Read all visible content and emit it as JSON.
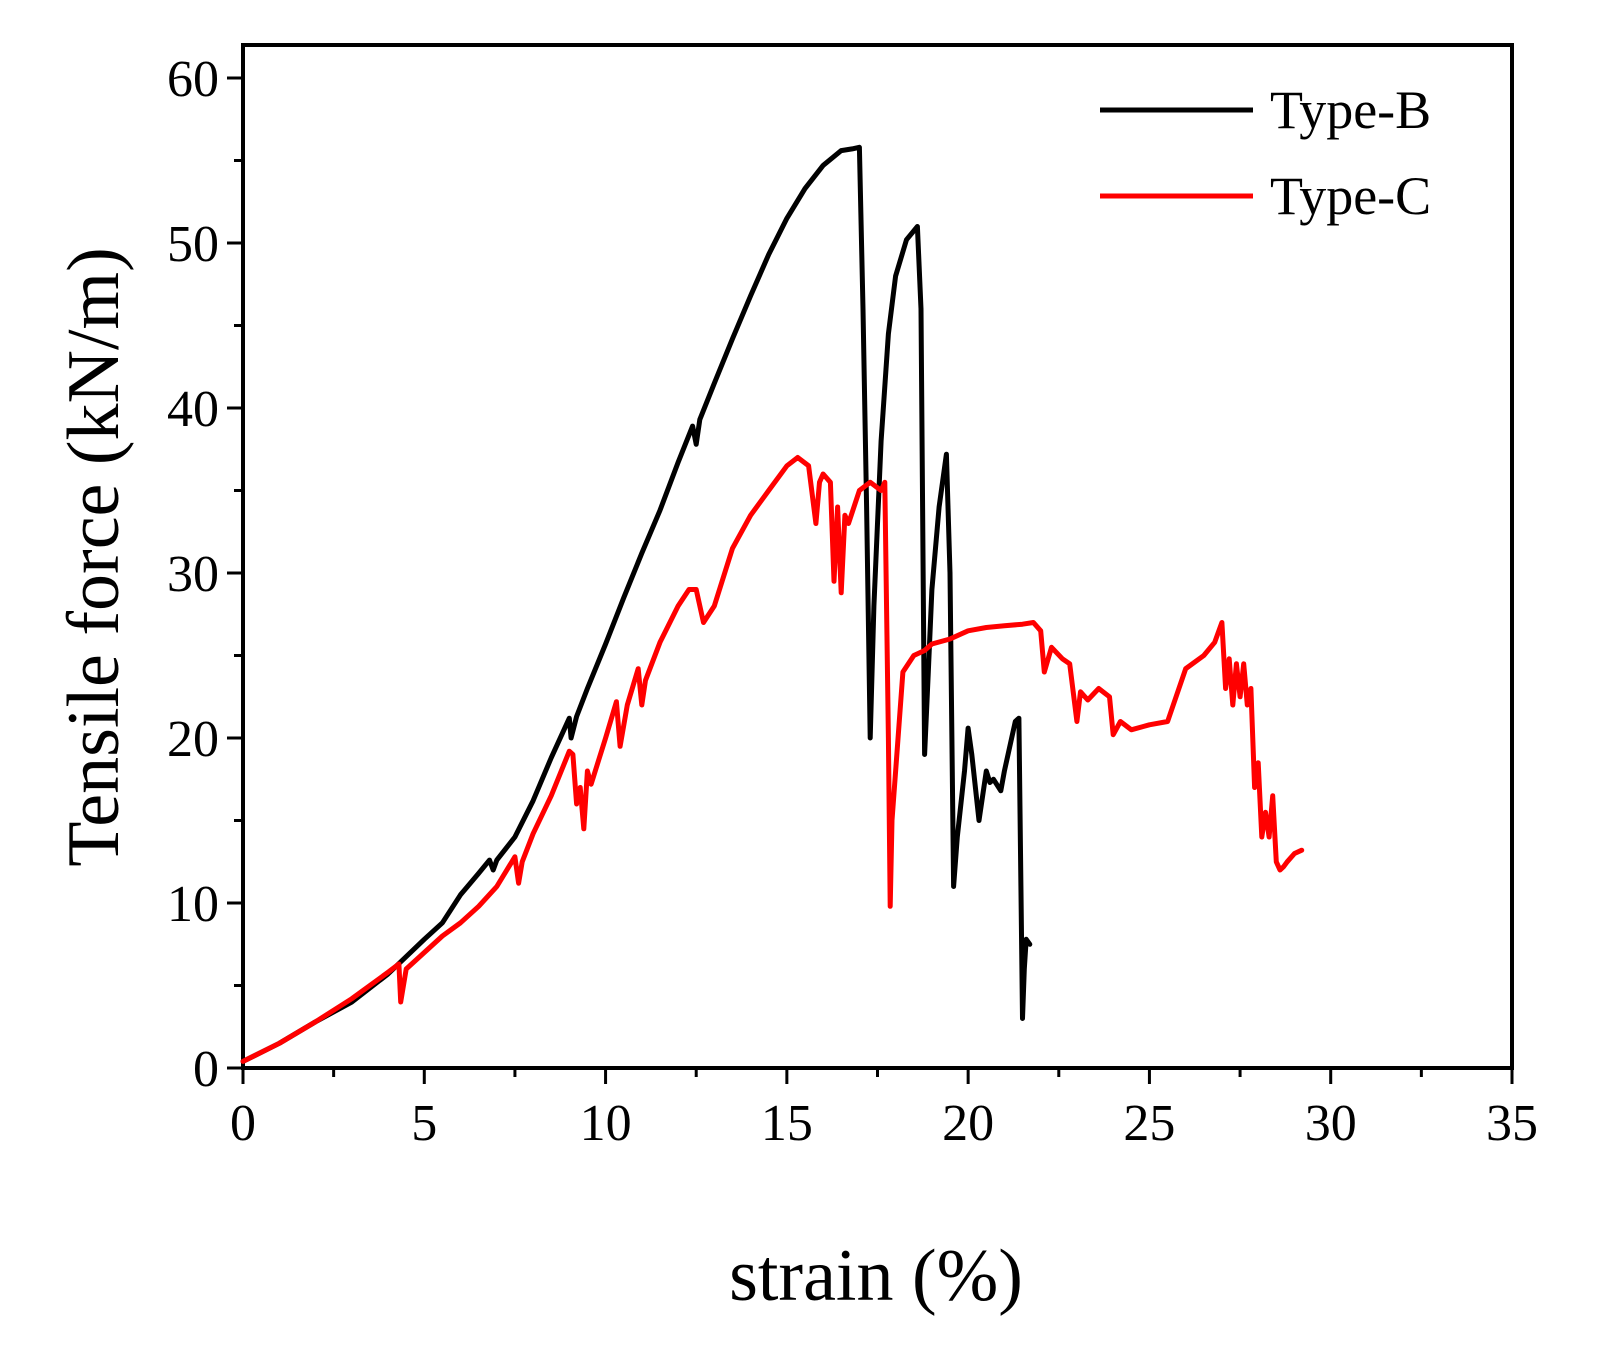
{
  "chart_data": {
    "type": "line",
    "title": "",
    "xlabel": "strain (%)",
    "ylabel": "Tensile force (kN/m)",
    "xlim": [
      0,
      35
    ],
    "ylim": [
      0,
      62
    ],
    "xticks": [
      0,
      5,
      10,
      15,
      20,
      25,
      30,
      35
    ],
    "yticks": [
      0,
      10,
      20,
      30,
      40,
      50,
      60
    ],
    "xtick_labels": [
      "0",
      "5",
      "10",
      "15",
      "20",
      "25",
      "30",
      "35"
    ],
    "ytick_labels": [
      "0",
      "10",
      "20",
      "30",
      "40",
      "50",
      "60"
    ],
    "grid": false,
    "legend_position": "top-right",
    "series": [
      {
        "name": "Type-B",
        "color": "#000000",
        "x": [
          0,
          1,
          2,
          3,
          4,
          5,
          5.5,
          6,
          6.5,
          6.8,
          6.9,
          7,
          7.5,
          8,
          8.5,
          9.0,
          9.05,
          9.2,
          9.5,
          10,
          10.5,
          11,
          11.5,
          12,
          12.4,
          12.5,
          12.6,
          13,
          13.5,
          14,
          14.5,
          15,
          15.5,
          16,
          16.5,
          16.8,
          17.0,
          17.1,
          17.2,
          17.3,
          17.4,
          17.6,
          17.8,
          18.0,
          18.3,
          18.6,
          18.7,
          18.8,
          18.9,
          19.0,
          19.2,
          19.4,
          19.5,
          19.6,
          19.7,
          19.9,
          20.0,
          20.1,
          20.3,
          20.5,
          20.6,
          20.7,
          20.9,
          21.0,
          21.3,
          21.4,
          21.5,
          21.55,
          21.6,
          21.7
        ],
        "values": [
          0.4,
          1.5,
          2.8,
          4.0,
          5.7,
          7.8,
          8.8,
          10.5,
          11.8,
          12.6,
          12.0,
          12.6,
          14.0,
          16.2,
          18.8,
          21.2,
          20.0,
          21.3,
          23.0,
          25.7,
          28.5,
          31.2,
          33.8,
          36.7,
          38.9,
          37.8,
          39.3,
          41.5,
          44.2,
          46.8,
          49.3,
          51.5,
          53.3,
          54.7,
          55.6,
          55.7,
          55.8,
          46.0,
          34.0,
          20.0,
          28.0,
          38.0,
          44.5,
          48.0,
          50.2,
          51.0,
          46.0,
          19.0,
          24.0,
          29.0,
          34.0,
          37.2,
          30.0,
          11.0,
          14.0,
          18.0,
          20.6,
          19.0,
          15.0,
          18.0,
          17.3,
          17.5,
          16.8,
          18.0,
          21.0,
          21.2,
          3.0,
          6.0,
          7.8,
          7.5
        ]
      },
      {
        "name": "Type-C",
        "color": "#ff0000",
        "x": [
          0,
          1,
          2,
          3,
          4,
          4.3,
          4.35,
          4.5,
          5,
          5.5,
          6,
          6.5,
          7,
          7.5,
          7.6,
          7.7,
          8,
          8.5,
          9.0,
          9.1,
          9.2,
          9.3,
          9.4,
          9.5,
          9.6,
          10,
          10.3,
          10.4,
          10.6,
          10.9,
          11.0,
          11.1,
          11.5,
          12,
          12.3,
          12.5,
          12.7,
          13,
          13.5,
          14,
          14.5,
          15,
          15.3,
          15.6,
          15.8,
          15.9,
          16.0,
          16.2,
          16.3,
          16.4,
          16.5,
          16.6,
          16.7,
          17.0,
          17.3,
          17.6,
          17.7,
          17.8,
          17.85,
          17.9,
          18.2,
          18.5,
          18.8,
          19.0,
          19.5,
          20,
          20.5,
          21,
          21.5,
          21.8,
          22.0,
          22.1,
          22.3,
          22.6,
          22.8,
          23.0,
          23.1,
          23.3,
          23.6,
          23.9,
          24.0,
          24.2,
          24.5,
          25,
          25.5,
          26,
          26.5,
          26.8,
          27.0,
          27.1,
          27.2,
          27.3,
          27.4,
          27.5,
          27.6,
          27.7,
          27.8,
          27.9,
          28.0,
          28.1,
          28.2,
          28.3,
          28.4,
          28.5,
          28.6,
          28.7,
          28.8,
          29.0,
          29.2
        ],
        "values": [
          0.4,
          1.5,
          2.8,
          4.2,
          5.8,
          6.3,
          4.0,
          6.0,
          7.0,
          8.0,
          8.8,
          9.8,
          11.0,
          12.8,
          11.2,
          12.5,
          14.2,
          16.5,
          19.2,
          19.0,
          16.0,
          17.0,
          14.5,
          18.0,
          17.2,
          20.0,
          22.2,
          19.5,
          22.0,
          24.2,
          22.0,
          23.5,
          25.8,
          28.0,
          29.0,
          29.0,
          27.0,
          28.0,
          31.5,
          33.5,
          35.0,
          36.5,
          37.0,
          36.5,
          33.0,
          35.5,
          36.0,
          35.5,
          29.5,
          34.0,
          28.8,
          33.5,
          33.0,
          35.0,
          35.5,
          35.0,
          35.5,
          20.0,
          9.8,
          15.0,
          24.0,
          25.0,
          25.3,
          25.7,
          26.0,
          26.5,
          26.7,
          26.8,
          26.9,
          27.0,
          26.5,
          24.0,
          25.5,
          24.8,
          24.5,
          21.0,
          22.8,
          22.3,
          23.0,
          22.5,
          20.2,
          21.0,
          20.5,
          20.8,
          21.0,
          24.2,
          25.0,
          25.8,
          27.0,
          23.0,
          24.8,
          22.0,
          24.5,
          22.5,
          24.5,
          22.0,
          23.0,
          17.0,
          18.5,
          14.0,
          15.5,
          14.0,
          16.5,
          12.5,
          12.0,
          12.2,
          12.5,
          13.0,
          13.2
        ],
        "truncate_note": ""
      }
    ]
  }
}
